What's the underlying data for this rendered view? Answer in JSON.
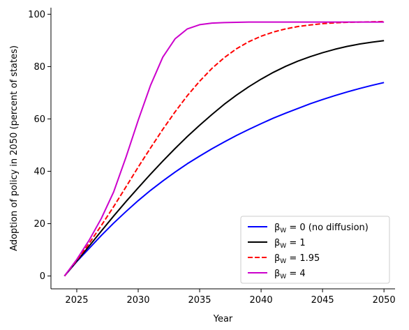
{
  "chart_data": {
    "type": "line",
    "title": "",
    "xlabel": "Year",
    "ylabel": "Adoption of policy in 2050 (percent of states)",
    "xlim": [
      2022.9,
      2050.9
    ],
    "ylim": [
      -4.9,
      102.5
    ],
    "xticks": [
      2025,
      2030,
      2035,
      2040,
      2045,
      2050
    ],
    "yticks": [
      0,
      20,
      40,
      60,
      80,
      100
    ],
    "grid": false,
    "legend_position": "lower-right",
    "series": [
      {
        "name": "βW = 0 (no diffusion)",
        "legend_main": "β",
        "legend_sub": "W",
        "legend_rest": " = 0 (no diffusion)",
        "color": "#0000ff",
        "dash": "solid",
        "x": [
          2024,
          2025,
          2026,
          2027,
          2028,
          2029,
          2030,
          2031,
          2032,
          2033,
          2034,
          2035,
          2036,
          2037,
          2038,
          2039,
          2040,
          2041,
          2042,
          2043,
          2044,
          2045,
          2046,
          2047,
          2048,
          2049,
          2050
        ],
        "y": [
          0,
          5.5,
          10.5,
          15.5,
          20.2,
          24.6,
          28.8,
          32.7,
          36.3,
          39.7,
          42.9,
          45.8,
          48.6,
          51.2,
          53.7,
          56.0,
          58.2,
          60.3,
          62.2,
          64.0,
          65.8,
          67.4,
          68.9,
          70.3,
          71.6,
          72.8,
          73.9
        ]
      },
      {
        "name": "βW = 1",
        "legend_main": "β",
        "legend_sub": "W",
        "legend_rest": " = 1",
        "color": "#000000",
        "dash": "solid",
        "x": [
          2024,
          2025,
          2026,
          2027,
          2028,
          2029,
          2030,
          2031,
          2032,
          2033,
          2034,
          2035,
          2036,
          2037,
          2038,
          2039,
          2040,
          2041,
          2042,
          2043,
          2044,
          2045,
          2046,
          2047,
          2048,
          2049,
          2050
        ],
        "y": [
          0,
          5.7,
          11.4,
          17.2,
          22.9,
          28.4,
          33.7,
          38.9,
          43.9,
          48.7,
          53.3,
          57.6,
          61.7,
          65.6,
          69.1,
          72.3,
          75.2,
          77.8,
          80.1,
          82.1,
          83.8,
          85.3,
          86.6,
          87.7,
          88.6,
          89.3,
          89.9
        ]
      },
      {
        "name": "βW = 1.95",
        "legend_main": "β",
        "legend_sub": "W",
        "legend_rest": " = 1.95",
        "color": "#ff0000",
        "dash": "dashed",
        "x": [
          2024,
          2025,
          2026,
          2027,
          2028,
          2029,
          2030,
          2031,
          2032,
          2033,
          2034,
          2035,
          2036,
          2037,
          2038,
          2039,
          2040,
          2041,
          2042,
          2043,
          2044,
          2045,
          2046,
          2047,
          2048,
          2049,
          2050
        ],
        "y": [
          0,
          6.0,
          12.4,
          19.3,
          26.5,
          34.0,
          41.6,
          48.9,
          56.0,
          62.7,
          68.9,
          74.4,
          79.3,
          83.4,
          86.8,
          89.5,
          91.6,
          93.2,
          94.4,
          95.3,
          95.9,
          96.4,
          96.7,
          96.9,
          97.0,
          97.1,
          97.2
        ]
      },
      {
        "name": "βW = 4",
        "legend_main": "β",
        "legend_sub": "W",
        "legend_rest": " = 4",
        "color": "#cc00cc",
        "dash": "solid",
        "x": [
          2024,
          2025,
          2026,
          2027,
          2028,
          2029,
          2030,
          2031,
          2032,
          2033,
          2034,
          2035,
          2036,
          2037,
          2038,
          2039,
          2040,
          2041,
          2042,
          2043,
          2044,
          2045,
          2046,
          2047,
          2048,
          2049,
          2050
        ],
        "y": [
          0,
          6.3,
          13.6,
          22.0,
          32.1,
          45.3,
          59.5,
          72.8,
          83.6,
          90.6,
          94.4,
          96.0,
          96.6,
          96.8,
          96.9,
          97.0,
          97.0,
          97.0,
          97.0,
          97.0,
          97.0,
          97.0,
          97.0,
          97.0,
          97.0,
          97.0,
          97.0
        ]
      }
    ]
  }
}
